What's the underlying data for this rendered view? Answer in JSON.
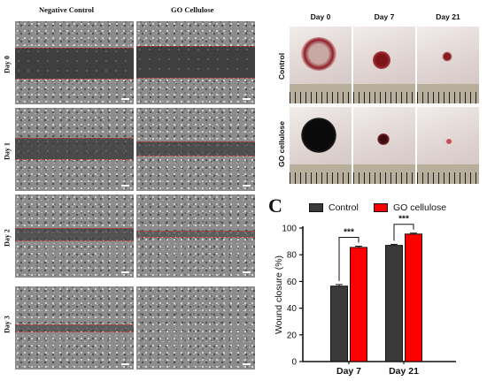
{
  "panel_a": {
    "columns": [
      "Negative Control",
      "GO Cellulose"
    ],
    "rows": [
      "Day 0",
      "Day 1",
      "Day 2",
      "Day 3"
    ]
  },
  "panel_b": {
    "columns": [
      "Day 0",
      "Day 7",
      "Day 21"
    ],
    "rows": [
      "Control",
      "GO cellulose"
    ]
  },
  "panel_c": {
    "letter": "C"
  },
  "colors": {
    "control": "#3a3a3a",
    "go_cellulose": "#ff0000",
    "gap_outline": "#c23a3a"
  },
  "chart_data": {
    "type": "bar",
    "categories": [
      "Day 7",
      "Day 21"
    ],
    "series": [
      {
        "name": "Control",
        "values": [
          56.5,
          87
        ],
        "errors": [
          1.2,
          0.8
        ]
      },
      {
        "name": "GO cellulose",
        "values": [
          85.5,
          95.5
        ],
        "errors": [
          0.9,
          0.7
        ]
      }
    ],
    "ylabel": "Wound closure (%)",
    "xlabel": "",
    "ylim": [
      0,
      100
    ],
    "yticks": [
      "0",
      "20",
      "40",
      "60",
      "80",
      "100"
    ],
    "significance": [
      "***",
      "***"
    ],
    "legend_position": "top"
  }
}
